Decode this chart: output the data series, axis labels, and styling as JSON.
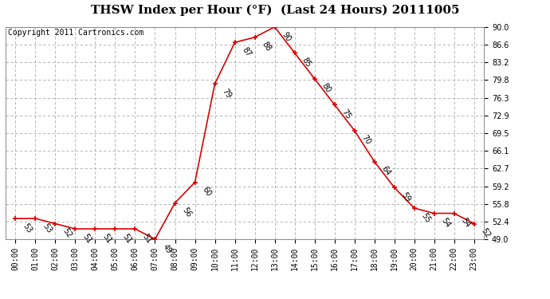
{
  "title": "THSW Index per Hour (°F)  (Last 24 Hours) 20111005",
  "copyright": "Copyright 2011 Cartronics.com",
  "hours": [
    "00:00",
    "01:00",
    "02:00",
    "03:00",
    "04:00",
    "05:00",
    "06:00",
    "07:00",
    "08:00",
    "09:00",
    "10:00",
    "11:00",
    "12:00",
    "13:00",
    "14:00",
    "15:00",
    "16:00",
    "17:00",
    "18:00",
    "19:00",
    "20:00",
    "21:00",
    "22:00",
    "23:00"
  ],
  "values": [
    53,
    53,
    52,
    51,
    51,
    51,
    51,
    49,
    56,
    60,
    79,
    87,
    88,
    90,
    85,
    80,
    75,
    70,
    64,
    59,
    55,
    54,
    54,
    52
  ],
  "ylim_min": 49.0,
  "ylim_max": 90.0,
  "ytick_vals": [
    49.0,
    52.4,
    55.8,
    59.2,
    62.7,
    66.1,
    69.5,
    72.9,
    76.3,
    79.8,
    83.2,
    86.6,
    90.0
  ],
  "ytick_labels": [
    "49.0",
    "52.4",
    "55.8",
    "59.2",
    "62.7",
    "66.1",
    "69.5",
    "72.9",
    "76.3",
    "79.8",
    "83.2",
    "86.6",
    "90.0"
  ],
  "line_color": "#dd0000",
  "marker_color": "#dd0000",
  "bg_color": "#ffffff",
  "grid_color": "#aaaaaa",
  "title_fontsize": 11,
  "copyright_fontsize": 7,
  "label_fontsize": 7,
  "tick_fontsize": 7,
  "annotation_rotation": -55
}
